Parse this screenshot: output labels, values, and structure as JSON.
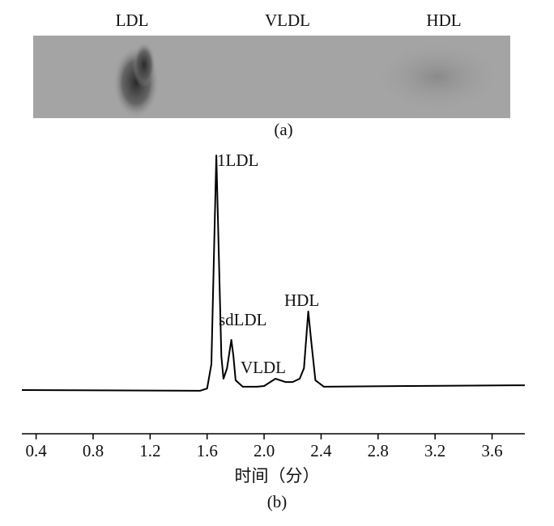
{
  "gel": {
    "lanes": [
      "LDL",
      "VLDL",
      "HDL"
    ],
    "caption": "(a)"
  },
  "chart_data": {
    "type": "line",
    "color": "#000000",
    "x": [
      0.3,
      1.55,
      1.6,
      1.63,
      1.65,
      1.665,
      1.68,
      1.7,
      1.715,
      1.74,
      1.77,
      1.785,
      1.8,
      1.85,
      1.95,
      2.0,
      2.08,
      2.15,
      2.2,
      2.25,
      2.28,
      2.31,
      2.33,
      2.36,
      2.42,
      3.0,
      3.83
    ],
    "values": [
      4.2,
      3.9,
      4.8,
      14.5,
      62.9,
      97.7,
      62.9,
      17.7,
      8.7,
      12.9,
      24.2,
      17.7,
      8.1,
      5.5,
      5.5,
      5.8,
      8.7,
      7.4,
      7.4,
      8.7,
      12.9,
      35.5,
      24.2,
      8.1,
      5.5,
      5.8,
      6.1
    ],
    "xlim": [
      0.3,
      3.83
    ],
    "ylim": [
      0,
      100
    ],
    "xticks": [
      0.4,
      0.8,
      1.2,
      1.6,
      {
        "value": 2,
        "label": "2.0"
      },
      2.4,
      2.8,
      3.2,
      3.6
    ],
    "x_label": "时间（分）",
    "annotations": [
      "1LDL",
      "sdLDL",
      "VLDL",
      "HDL"
    ],
    "caption": "(b)"
  }
}
